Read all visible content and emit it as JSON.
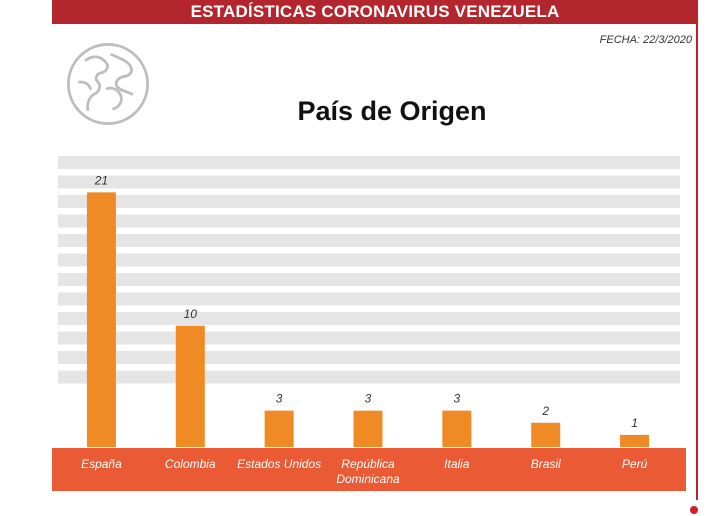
{
  "header": {
    "title": "ESTADÍSTICAS CORONAVIRUS VENEZUELA"
  },
  "date_label": "FECHA: 22/3/2020",
  "icons": {
    "globe": "globe-icon"
  },
  "colors": {
    "header_bg": "#b3262d",
    "bar": "#f08a24",
    "category_band": "#ea5a35",
    "gridline": "#e5e5e5"
  },
  "chart_data": {
    "type": "bar",
    "title": "País de Origen",
    "categories": [
      "España",
      "Colombia",
      "Estados Unidos",
      "República Dominicana",
      "Italia",
      "Brasil",
      "Perú"
    ],
    "category_lines": [
      [
        "España"
      ],
      [
        "Colombia"
      ],
      [
        "Estados Unidos"
      ],
      [
        "República",
        "Dominicana"
      ],
      [
        "Italia"
      ],
      [
        "Brasil"
      ],
      [
        "Perú"
      ]
    ],
    "values": [
      21,
      10,
      3,
      3,
      3,
      2,
      1
    ],
    "data_labels": [
      "21",
      "10",
      "3",
      "3",
      "3",
      "2",
      "1"
    ],
    "ylim": [
      0,
      24
    ],
    "grid": true,
    "xlabel": "",
    "ylabel": ""
  }
}
